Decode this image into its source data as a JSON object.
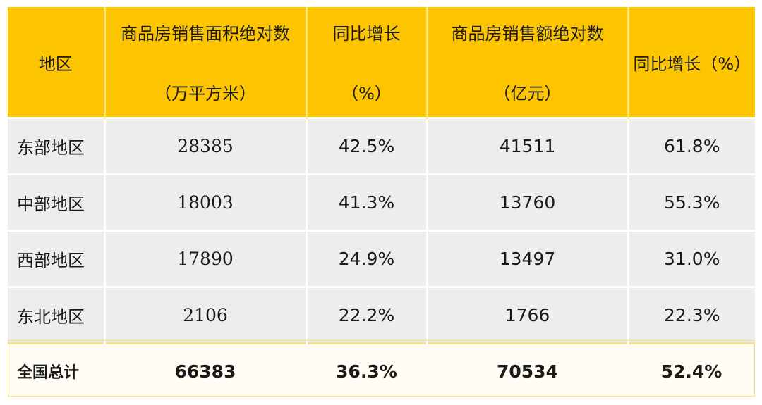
{
  "table": {
    "headers": {
      "region": "地区",
      "area_line1": "商品房销售面积绝对数",
      "area_line2": "（万平方米）",
      "area_growth_line1": "同比增长",
      "area_growth_line2": "（%）",
      "amount_line1": "商品房销售额绝对数",
      "amount_line2": "（亿元）",
      "amount_growth": "同比增长（%）"
    },
    "rows": [
      {
        "region": "东部地区",
        "area": "28385",
        "area_growth": "42.5%",
        "amount": "41511",
        "amount_growth": "61.8%"
      },
      {
        "region": "中部地区",
        "area": "18003",
        "area_growth": "41.3%",
        "amount": "13760",
        "amount_growth": "55.3%"
      },
      {
        "region": "西部地区",
        "area": "17890",
        "area_growth": "24.9%",
        "amount": "13497",
        "amount_growth": "31.0%"
      },
      {
        "region": "东北地区",
        "area": "2106",
        "area_growth": "22.2%",
        "amount": "1766",
        "amount_growth": "22.3%"
      }
    ],
    "total": {
      "region": "全国总计",
      "area": "66383",
      "area_growth": "36.3%",
      "amount": "70534",
      "amount_growth": "52.4%"
    }
  },
  "colors": {
    "header_bg": "#fdc400",
    "row_bg": "#ededed",
    "total_bg": "#fffdf3"
  }
}
